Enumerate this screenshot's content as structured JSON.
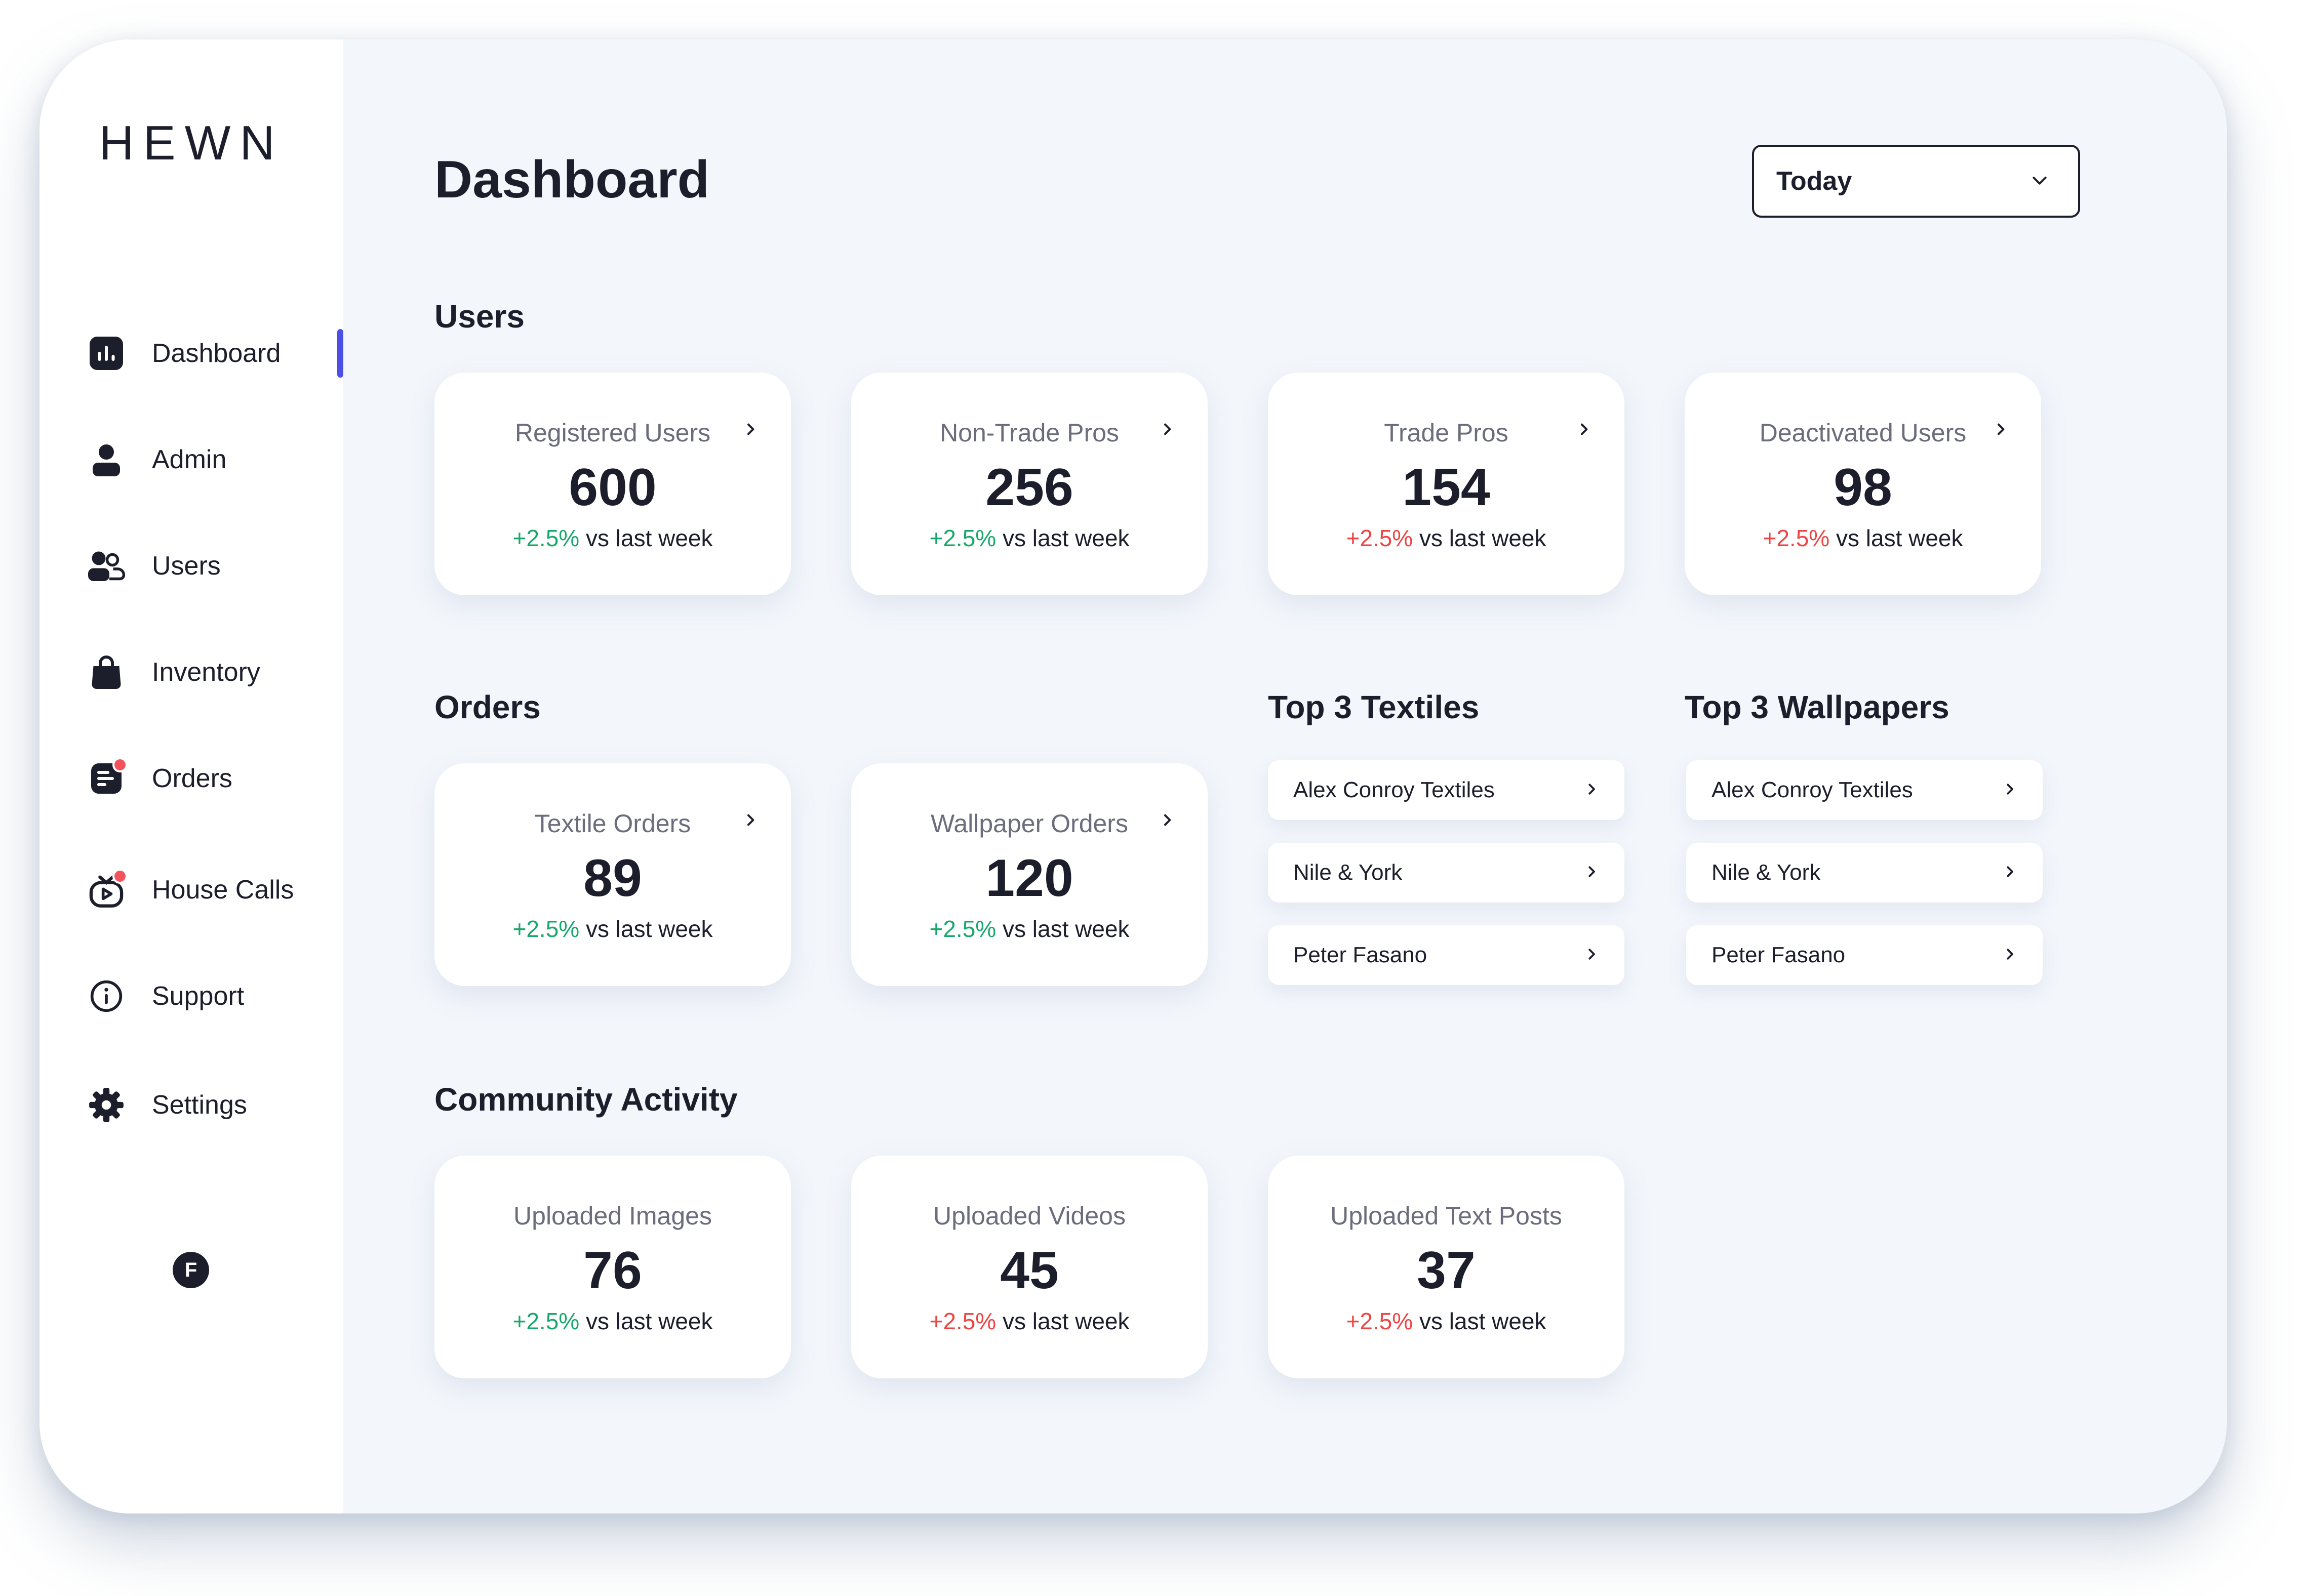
{
  "brand": "HEWN",
  "sidebar": {
    "items": [
      {
        "label": "Dashboard",
        "icon": "dashboard-icon",
        "active": true
      },
      {
        "label": "Admin",
        "icon": "admin-icon"
      },
      {
        "label": "Users",
        "icon": "users-icon"
      },
      {
        "label": "Inventory",
        "icon": "inventory-icon"
      },
      {
        "label": "Orders",
        "icon": "orders-icon",
        "notification": true
      },
      {
        "label": "House Calls",
        "icon": "house-calls-icon",
        "notification": true
      },
      {
        "label": "Support",
        "icon": "support-icon"
      },
      {
        "label": "Settings",
        "icon": "settings-icon"
      }
    ],
    "avatar_initial": "F"
  },
  "header": {
    "title": "Dashboard",
    "range_select": {
      "value": "Today"
    }
  },
  "sections": {
    "users": {
      "title": "Users",
      "cards": [
        {
          "title": "Registered Users",
          "value": "600",
          "change": "+2.5%",
          "suffix": " vs last week",
          "trend": "up"
        },
        {
          "title": "Non-Trade Pros",
          "value": "256",
          "change": "+2.5%",
          "suffix": " vs last week",
          "trend": "up"
        },
        {
          "title": "Trade Pros",
          "value": "154",
          "change": "+2.5%",
          "suffix": " vs last week",
          "trend": "down"
        },
        {
          "title": "Deactivated Users",
          "value": "98",
          "change": "+2.5%",
          "suffix": " vs last week",
          "trend": "down"
        }
      ]
    },
    "orders": {
      "title": "Orders",
      "cards": [
        {
          "title": "Textile Orders",
          "value": "89",
          "change": "+2.5%",
          "suffix": " vs last week",
          "trend": "up"
        },
        {
          "title": "Wallpaper Orders",
          "value": "120",
          "change": "+2.5%",
          "suffix": " vs last week",
          "trend": "up"
        }
      ]
    },
    "top_textiles": {
      "title": "Top 3 Textiles",
      "items": [
        "Alex Conroy Textiles",
        "Nile & York",
        "Peter Fasano"
      ]
    },
    "top_wallpapers": {
      "title": "Top 3 Wallpapers",
      "items": [
        "Alex Conroy Textiles",
        "Nile & York",
        "Peter Fasano"
      ]
    },
    "community": {
      "title": "Community Activity",
      "cards": [
        {
          "title": "Uploaded Images",
          "value": "76",
          "change": "+2.5%",
          "suffix": " vs last week",
          "trend": "up"
        },
        {
          "title": "Uploaded Videos",
          "value": "45",
          "change": "+2.5%",
          "suffix": " vs last week",
          "trend": "down"
        },
        {
          "title": "Uploaded Text Posts",
          "value": "37",
          "change": "+2.5%",
          "suffix": " vs last week",
          "trend": "down"
        }
      ]
    }
  },
  "colors": {
    "accent": "#4b4fe6",
    "positive": "#18a86b",
    "negative": "#ef4444",
    "notification": "#f3535b",
    "text": "#1d1e2c",
    "muted": "#6b6d7c"
  }
}
